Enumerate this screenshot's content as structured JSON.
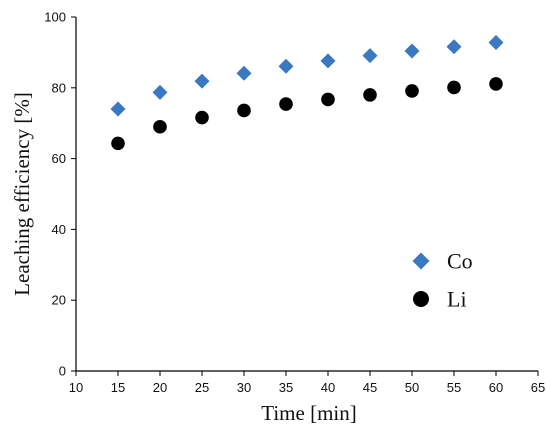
{
  "chart_data": {
    "type": "scatter",
    "xlabel": "Time [min]",
    "ylabel": "Leaching efficiency [%]",
    "xlim": [
      10,
      65
    ],
    "ylim": [
      0,
      100
    ],
    "xticks": [
      10,
      15,
      20,
      25,
      30,
      35,
      40,
      45,
      50,
      55,
      60,
      65
    ],
    "yticks": [
      0,
      20,
      40,
      60,
      80,
      100
    ],
    "x": [
      15,
      20,
      25,
      30,
      35,
      40,
      45,
      50,
      55,
      60
    ],
    "series": [
      {
        "name": "Co",
        "marker": "diamond",
        "color": "#3A78C2",
        "values": [
          74,
          78.7,
          81.9,
          84.1,
          86.1,
          87.6,
          89.1,
          90.4,
          91.6,
          92.8
        ]
      },
      {
        "name": "Li",
        "marker": "circle",
        "color": "#000000",
        "values": [
          64.3,
          69.0,
          71.6,
          73.6,
          75.4,
          76.7,
          78.0,
          79.1,
          80.1,
          81.1
        ]
      }
    ],
    "legend": {
      "placement": "bottom-right"
    },
    "grid": false
  }
}
